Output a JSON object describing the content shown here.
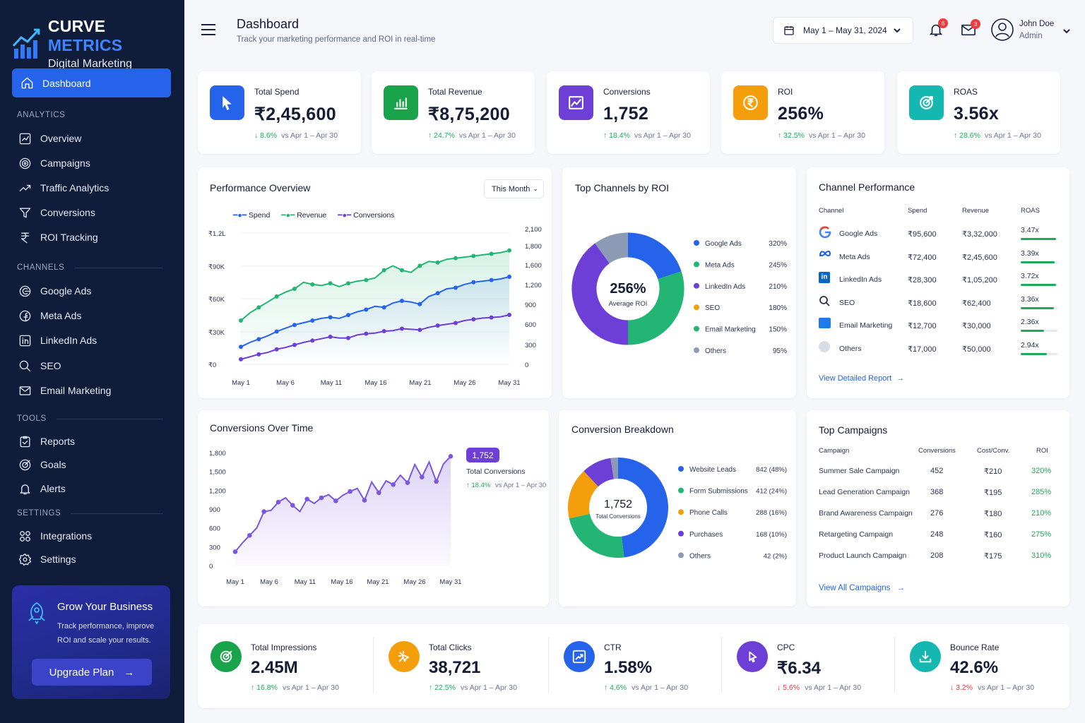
{
  "brand": {
    "name_a": "CURVE",
    "name_b": "METRICS",
    "subtitle": "Digital Marketing"
  },
  "nav": {
    "active": "Dashboard",
    "analytics_label": "ANALYTICS",
    "analytics": [
      "Overview",
      "Campaigns",
      "Traffic Analytics",
      "Conversions",
      "ROI Tracking"
    ],
    "channels_label": "CHANNELS",
    "channels": [
      "Google Ads",
      "Meta Ads",
      "LinkedIn Ads",
      "SEO",
      "Email Marketing"
    ],
    "tools_label": "TOOLS",
    "tools": [
      "Reports",
      "Goals",
      "Alerts"
    ],
    "settings_label": "SETTINGS",
    "settings": [
      "Integrations",
      "Settings"
    ]
  },
  "promo": {
    "title": "Grow Your Business",
    "text": "Track performance, improve ROI and scale your results.",
    "button": "Upgrade Plan"
  },
  "header": {
    "title": "Dashboard",
    "subtitle": "Track your marketing performance and ROI in real-time",
    "date_range": "May 1 – May 31, 2024",
    "notifications": "6",
    "messages": "3",
    "user_name": "John Doe",
    "user_role": "Admin"
  },
  "kpis": [
    {
      "label": "Total Spend",
      "value": "₹2,45,600",
      "change": "8.6%",
      "dir": "down",
      "vs": "vs Apr 1 – Apr 30",
      "color": "#2563eb",
      "icon": "cursor-icon"
    },
    {
      "label": "Total Revenue",
      "value": "₹8,75,200",
      "change": "24.7%",
      "dir": "up",
      "vs": "vs Apr 1 – Apr 30",
      "color": "#19a34a",
      "icon": "bar-chart-icon"
    },
    {
      "label": "Conversions",
      "value": "1,752",
      "change": "18.4%",
      "dir": "up",
      "vs": "vs Apr 1 – Apr 30",
      "color": "#6d3fd6",
      "icon": "line-chart-icon"
    },
    {
      "label": "ROI",
      "value": "256%",
      "change": "32.5%",
      "dir": "up",
      "vs": "vs Apr 1 – Apr 30",
      "color": "#f59e0b",
      "icon": "rupee-coin-icon"
    },
    {
      "label": "ROAS",
      "value": "3.56x",
      "change": "28.6%",
      "dir": "up",
      "vs": "vs Apr 1 – Apr 30",
      "color": "#14b8b0",
      "icon": "target-icon"
    }
  ],
  "performance": {
    "title": "Performance Overview",
    "filter": "This Month",
    "legend": [
      "Spend",
      "Revenue",
      "Conversions"
    ],
    "y_left": [
      "₹1.2L",
      "₹90K",
      "₹60K",
      "₹30K",
      "₹0"
    ],
    "y_right": [
      "2,100",
      "1,800",
      "1,600",
      "1,200",
      "900",
      "600",
      "300",
      "0"
    ],
    "x_labels": [
      "May 1",
      "May 6",
      "May 11",
      "May 16",
      "May 21",
      "May 26",
      "May 31"
    ]
  },
  "chart_data": [
    {
      "type": "line",
      "title": "Performance Overview",
      "x": [
        1,
        2,
        3,
        4,
        5,
        6,
        7,
        8,
        9,
        10,
        11,
        12,
        13,
        14,
        15,
        16,
        17,
        18,
        19,
        20,
        21,
        22,
        23,
        24,
        25,
        26,
        27,
        28,
        29,
        30,
        31
      ],
      "series": [
        {
          "name": "Revenue",
          "axis": "left",
          "values": [
            40000,
            47000,
            52000,
            57000,
            62000,
            66000,
            69000,
            75000,
            73000,
            72000,
            74000,
            71000,
            74000,
            76000,
            77000,
            79000,
            86000,
            90000,
            86000,
            84000,
            90000,
            94000,
            93000,
            96000,
            97000,
            98000,
            99000,
            100000,
            101000,
            102000,
            104000
          ]
        },
        {
          "name": "Spend",
          "axis": "left",
          "values": [
            16000,
            20000,
            23000,
            26000,
            30000,
            33000,
            36000,
            38000,
            40000,
            42000,
            43000,
            42000,
            45000,
            48000,
            50000,
            53000,
            52000,
            56000,
            58000,
            57000,
            55000,
            62000,
            65000,
            69000,
            70000,
            73000,
            75000,
            76000,
            77000,
            78000,
            80000
          ]
        },
        {
          "name": "Conversions",
          "axis": "right",
          "values": [
            80,
            120,
            160,
            190,
            240,
            270,
            310,
            350,
            380,
            410,
            440,
            420,
            420,
            470,
            490,
            500,
            530,
            540,
            570,
            560,
            550,
            590,
            620,
            640,
            660,
            700,
            720,
            740,
            750,
            760,
            790
          ]
        }
      ],
      "ylim_left": [
        0,
        120000
      ],
      "ylim_right": [
        0,
        2100
      ]
    },
    {
      "type": "pie",
      "title": "Top Channels by ROI",
      "center_value": "256%",
      "center_label": "Average ROI",
      "labels": [
        "Google Ads",
        "Meta Ads",
        "LinkedIn Ads",
        "SEO",
        "Email Marketing",
        "Others"
      ],
      "values": [
        320,
        245,
        210,
        180,
        150,
        95
      ],
      "value_labels": [
        "320%",
        "245%",
        "210%",
        "180%",
        "150%",
        "95%"
      ],
      "slices": [
        {
          "name": "Google Ads",
          "value": 20,
          "color": "#2563eb"
        },
        {
          "name": "Email Marketing",
          "value": 30,
          "color": "#22b573"
        },
        {
          "name": "LinkedIn Ads",
          "value": 40,
          "color": "#6d3fd6"
        },
        {
          "name": "Others",
          "value": 10,
          "color": "#8d9ab5"
        }
      ]
    },
    {
      "type": "area",
      "title": "Conversions Over Time",
      "x": [
        1,
        2,
        3,
        4,
        5,
        6,
        7,
        8,
        9,
        10,
        11,
        12,
        13,
        14,
        15,
        16,
        17,
        18,
        19,
        20,
        21,
        22,
        23,
        24,
        25,
        26,
        27,
        28,
        29,
        30,
        31
      ],
      "values": [
        220,
        360,
        480,
        600,
        860,
        880,
        1010,
        1080,
        960,
        860,
        1060,
        990,
        1080,
        1130,
        1030,
        1120,
        1180,
        1230,
        1040,
        1330,
        1160,
        1350,
        1290,
        1440,
        1320,
        1610,
        1410,
        1650,
        1340,
        1620,
        1740
      ],
      "ylim": [
        0,
        1800
      ],
      "y_labels": [
        "1,800",
        "1,500",
        "1,200",
        "900",
        "600",
        "300",
        "0"
      ],
      "x_labels": [
        "May 1",
        "May 6",
        "May 11",
        "May 16",
        "May 21",
        "May 26",
        "May 31"
      ],
      "callout": "1,752",
      "callout_label": "Total Conversions",
      "callout_change": "18.4%",
      "callout_vs": "vs Apr 1 – Apr 30"
    },
    {
      "type": "pie",
      "title": "Conversion Breakdown",
      "center_value": "1,752",
      "center_label": "Total Conversions",
      "labels": [
        "Website Leads",
        "Form Submissions",
        "Phone Calls",
        "Purchases",
        "Others"
      ],
      "values": [
        842,
        412,
        288,
        168,
        42
      ],
      "value_labels": [
        "842 (48%)",
        "412 (24%)",
        "288 (16%)",
        "168 (10%)",
        "42 (2%)"
      ],
      "colors": [
        "#2563eb",
        "#22b573",
        "#f59e0b",
        "#6d3fd6",
        "#8d9ab5"
      ]
    }
  ],
  "channel_perf": {
    "title": "Channel Performance",
    "headers": [
      "Channel",
      "Spend",
      "Revenue",
      "ROAS"
    ],
    "rows": [
      {
        "channel": "Google Ads",
        "spend": "₹95,600",
        "revenue": "₹3,32,000",
        "roas": "3.47x",
        "bar": 0.97
      },
      {
        "channel": "Meta Ads",
        "spend": "₹72,400",
        "revenue": "₹2,45,600",
        "roas": "3.39x",
        "bar": 0.92
      },
      {
        "channel": "LinkedIn Ads",
        "spend": "₹28,300",
        "revenue": "₹1,05,200",
        "roas": "3.72x",
        "bar": 0.97
      },
      {
        "channel": "SEO",
        "spend": "₹18,600",
        "revenue": "₹62,400",
        "roas": "3.36x",
        "bar": 0.9
      },
      {
        "channel": "Email Marketing",
        "spend": "₹12,700",
        "revenue": "₹30,000",
        "roas": "2.36x",
        "bar": 0.63
      },
      {
        "channel": "Others",
        "spend": "₹17,000",
        "revenue": "₹50,000",
        "roas": "2.94x",
        "bar": 0.72
      }
    ],
    "link": "View Detailed Report"
  },
  "campaigns": {
    "title": "Top Campaigns",
    "headers": [
      "Campaign",
      "Conversions",
      "Cost/Conv.",
      "ROI"
    ],
    "rows": [
      {
        "name": "Summer Sale Campaign",
        "conv": "452",
        "cost": "₹210",
        "roi": "320%"
      },
      {
        "name": "Lead Generation Campaign",
        "conv": "368",
        "cost": "₹195",
        "roi": "285%"
      },
      {
        "name": "Brand Awareness Campaign",
        "conv": "276",
        "cost": "₹180",
        "roi": "210%"
      },
      {
        "name": "Retargeting Campaign",
        "conv": "248",
        "cost": "₹160",
        "roi": "275%"
      },
      {
        "name": "Product Launch Campaign",
        "conv": "208",
        "cost": "₹175",
        "roi": "310%"
      }
    ],
    "link": "View All Campaigns"
  },
  "bottom": [
    {
      "label": "Total Impressions",
      "value": "2.45M",
      "change": "16.8%",
      "dir": "up",
      "vs": "vs Apr 1 – Apr 30",
      "color": "#19a34a",
      "icon": "target-check-icon"
    },
    {
      "label": "Total Clicks",
      "value": "38,721",
      "change": "22.5%",
      "dir": "up",
      "vs": "vs Apr 1 – Apr 30",
      "color": "#f59e0b",
      "icon": "click-icon"
    },
    {
      "label": "CTR",
      "value": "1.58%",
      "change": "4.6%",
      "dir": "up",
      "vs": "vs Apr 1 – Apr 30",
      "color": "#2563eb",
      "icon": "trend-up-icon"
    },
    {
      "label": "CPC",
      "value": "₹6.34",
      "change": "5.6%",
      "dir": "down",
      "vs": "vs Apr 1 – Apr 30",
      "color": "#6d3fd6",
      "icon": "cursor-click-icon"
    },
    {
      "label": "Bounce Rate",
      "value": "42.6%",
      "change": "3.2%",
      "dir": "down",
      "vs": "vs Apr 1 – Apr 30",
      "color": "#14b8b0",
      "icon": "download-icon"
    }
  ]
}
